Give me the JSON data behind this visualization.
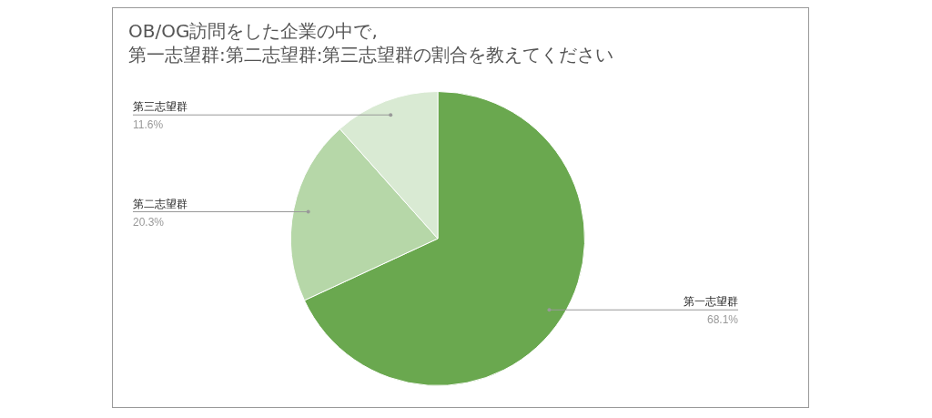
{
  "chart_data": {
    "type": "pie",
    "title": "OB/OG訪問をした企業の中で,\n第一志望群:第二志望群:第三志望群の割合を教えてください",
    "categories": [
      "第一志望群",
      "第二志望群",
      "第三志望群"
    ],
    "values": [
      68.1,
      20.3,
      11.6
    ],
    "value_labels": [
      "68.1%",
      "20.3%",
      "11.6%"
    ],
    "colors": [
      "#6aa84f",
      "#b6d7a8",
      "#d9ead3"
    ],
    "legend": false
  }
}
